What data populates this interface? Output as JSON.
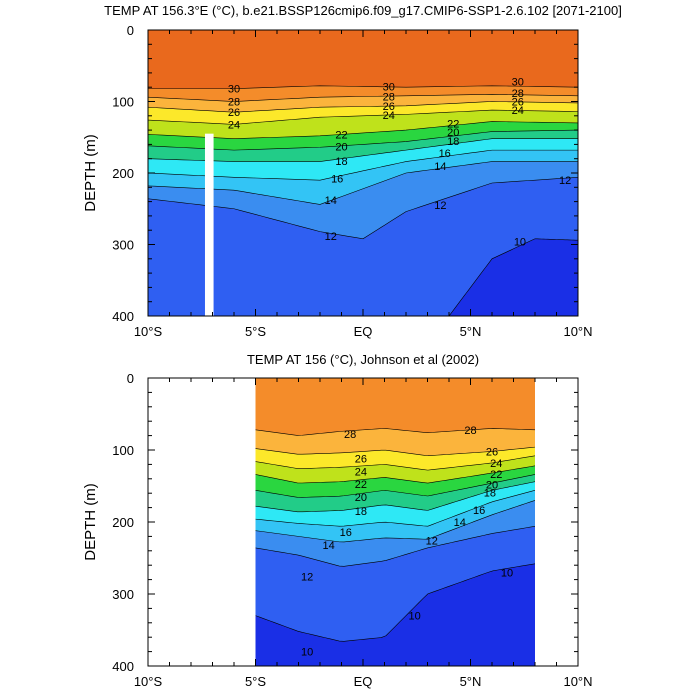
{
  "chart_data": [
    {
      "type": "heatmap",
      "subtype": "filled-contour",
      "title": "TEMP AT 156.3°E (°C), b.e21.BSSP126cmip6.f09_g17.CMIP6-SSP1-2.6.102 [2071-2100]",
      "xlabel": "",
      "ylabel": "DEPTH (m)",
      "xlim": [
        -10,
        10
      ],
      "ylim": [
        400,
        0
      ],
      "x_ticks": [
        -10,
        -5,
        0,
        5,
        10
      ],
      "x_tick_labels": [
        "10°S",
        "5°S",
        "EQ",
        "5°N",
        "10°N"
      ],
      "y_ticks": [
        0,
        100,
        200,
        300,
        400
      ],
      "y_tick_labels": [
        "0",
        "100",
        "200",
        "300",
        "400"
      ],
      "data_xrange": [
        -10,
        10
      ],
      "depth_max": 400,
      "gap": {
        "x_range": [
          -7.35,
          -6.95
        ],
        "depth_top": 145
      },
      "levels": [
        {
          "level": 30,
          "x": [
            -10,
            -6,
            -2,
            2,
            6,
            10
          ],
          "depth": [
            82,
            82,
            78,
            80,
            78,
            80
          ],
          "labels": [
            {
              "x": -6.0,
              "d": 82,
              "text": "30"
            },
            {
              "x": 1.2,
              "d": 79,
              "text": "30"
            },
            {
              "x": 7.2,
              "d": 72,
              "text": "30"
            }
          ]
        },
        {
          "level": 28,
          "x": [
            -10,
            -6,
            -2,
            2,
            6,
            10
          ],
          "depth": [
            94,
            100,
            94,
            92,
            90,
            92
          ],
          "labels": [
            {
              "x": -6.0,
              "d": 100,
              "text": "28"
            },
            {
              "x": 1.2,
              "d": 93,
              "text": "28"
            },
            {
              "x": 7.2,
              "d": 88,
              "text": "28"
            }
          ]
        },
        {
          "level": 26,
          "x": [
            -10,
            -6,
            -2,
            2,
            6,
            10
          ],
          "depth": [
            108,
            115,
            108,
            106,
            100,
            102
          ],
          "labels": [
            {
              "x": -6.0,
              "d": 115,
              "text": "26"
            },
            {
              "x": 1.2,
              "d": 106,
              "text": "26"
            },
            {
              "x": 7.2,
              "d": 100,
              "text": "26"
            }
          ]
        },
        {
          "level": 24,
          "x": [
            -10,
            -6,
            -2,
            2,
            6,
            10
          ],
          "depth": [
            126,
            132,
            122,
            118,
            112,
            114
          ],
          "labels": [
            {
              "x": -6.0,
              "d": 132,
              "text": "24"
            },
            {
              "x": 1.2,
              "d": 119,
              "text": "24"
            },
            {
              "x": 7.2,
              "d": 112,
              "text": "24"
            }
          ]
        },
        {
          "level": 22,
          "x": [
            -10,
            -6,
            -2,
            2,
            6,
            10
          ],
          "depth": [
            146,
            152,
            148,
            140,
            128,
            130
          ],
          "labels": [
            {
              "x": -1.0,
              "d": 146,
              "text": "22"
            },
            {
              "x": 4.2,
              "d": 131,
              "text": "22"
            }
          ]
        },
        {
          "level": 20,
          "x": [
            -10,
            -6,
            -2,
            2,
            6,
            10
          ],
          "depth": [
            162,
            168,
            164,
            156,
            142,
            140
          ],
          "labels": [
            {
              "x": -1.0,
              "d": 163,
              "text": "20"
            },
            {
              "x": 4.2,
              "d": 143,
              "text": "20"
            }
          ]
        },
        {
          "level": 18,
          "x": [
            -10,
            -6,
            -2,
            2,
            6,
            10
          ],
          "depth": [
            180,
            184,
            184,
            168,
            152,
            152
          ],
          "labels": [
            {
              "x": -1.0,
              "d": 183,
              "text": "18"
            },
            {
              "x": 4.2,
              "d": 155,
              "text": "18"
            }
          ]
        },
        {
          "level": 16,
          "x": [
            -10,
            -6,
            -2,
            2,
            6,
            10
          ],
          "depth": [
            200,
            206,
            210,
            184,
            168,
            168
          ],
          "labels": [
            {
              "x": -1.2,
              "d": 208,
              "text": "16"
            },
            {
              "x": 3.8,
              "d": 172,
              "text": "16"
            }
          ]
        },
        {
          "level": 14,
          "x": [
            -10,
            -6,
            -2,
            2,
            6,
            10
          ],
          "depth": [
            218,
            224,
            244,
            200,
            184,
            184
          ],
          "labels": [
            {
              "x": -1.5,
              "d": 238,
              "text": "14"
            },
            {
              "x": 3.6,
              "d": 190,
              "text": "14"
            }
          ]
        },
        {
          "level": 12,
          "x": [
            -10,
            -6,
            -2,
            0,
            2,
            6,
            10
          ],
          "depth": [
            236,
            250,
            282,
            292,
            254,
            214,
            206
          ],
          "labels": [
            {
              "x": -1.5,
              "d": 288,
              "text": "12"
            },
            {
              "x": 3.6,
              "d": 245,
              "text": "12"
            },
            {
              "x": 9.4,
              "d": 210,
              "text": "12"
            }
          ]
        },
        {
          "level": 10,
          "x": [
            4,
            6,
            8,
            10
          ],
          "depth": [
            400,
            320,
            292,
            294
          ],
          "labels": [
            {
              "x": 7.3,
              "d": 296,
              "text": "10"
            }
          ]
        }
      ],
      "colors": [
        "#1a2fe6",
        "#2f5ff2",
        "#3a8df0",
        "#33c4f5",
        "#2ee8f5",
        "#22cc88",
        "#2ad640",
        "#bfe21b",
        "#fce82a",
        "#fbb43c",
        "#f48c2a",
        "#e9691d",
        "#e13516",
        "#dc1616",
        "#bf0505"
      ]
    },
    {
      "type": "heatmap",
      "subtype": "filled-contour",
      "title": "TEMP AT 156 (°C), Johnson et al (2002)",
      "xlabel": "",
      "ylabel": "DEPTH (m)",
      "xlim": [
        -10,
        10
      ],
      "ylim": [
        400,
        0
      ],
      "x_ticks": [
        -10,
        -5,
        0,
        5,
        10
      ],
      "x_tick_labels": [
        "10°S",
        "5°S",
        "EQ",
        "5°N",
        "10°N"
      ],
      "y_ticks": [
        0,
        100,
        200,
        300,
        400
      ],
      "y_tick_labels": [
        "0",
        "100",
        "200",
        "300",
        "400"
      ],
      "data_xrange": [
        -5,
        8
      ],
      "depth_max": 400,
      "levels": [
        {
          "level": 28,
          "x": [
            -5,
            -3,
            -1,
            1,
            3,
            6,
            8
          ],
          "depth": [
            72,
            80,
            74,
            70,
            76,
            70,
            72
          ],
          "labels": [
            {
              "x": -0.6,
              "d": 78,
              "text": "28"
            },
            {
              "x": 5.0,
              "d": 72,
              "text": "28"
            }
          ]
        },
        {
          "level": 26,
          "x": [
            -5,
            -3,
            -1,
            1,
            3,
            6,
            8
          ],
          "depth": [
            98,
            106,
            104,
            100,
            108,
            102,
            96
          ],
          "labels": [
            {
              "x": -0.1,
              "d": 112,
              "text": "26"
            },
            {
              "x": 6.0,
              "d": 102,
              "text": "26"
            }
          ]
        },
        {
          "level": 24,
          "x": [
            -5,
            -3,
            -1,
            1,
            3,
            6,
            8
          ],
          "depth": [
            116,
            126,
            124,
            120,
            128,
            118,
            108
          ],
          "labels": [
            {
              "x": -0.1,
              "d": 130,
              "text": "24"
            },
            {
              "x": 6.2,
              "d": 118,
              "text": "24"
            }
          ]
        },
        {
          "level": 22,
          "x": [
            -5,
            -3,
            -1,
            1,
            3,
            6,
            8
          ],
          "depth": [
            134,
            146,
            144,
            138,
            146,
            132,
            122
          ],
          "labels": [
            {
              "x": -0.1,
              "d": 147,
              "text": "22"
            },
            {
              "x": 6.2,
              "d": 133,
              "text": "22"
            }
          ]
        },
        {
          "level": 20,
          "x": [
            -5,
            -3,
            -1,
            1,
            3,
            6,
            8
          ],
          "depth": [
            156,
            166,
            164,
            156,
            164,
            146,
            134
          ],
          "labels": [
            {
              "x": -0.1,
              "d": 165,
              "text": "20"
            },
            {
              "x": 6.0,
              "d": 148,
              "text": "20"
            }
          ]
        },
        {
          "level": 18,
          "x": [
            -5,
            -3,
            -1,
            1,
            3,
            6,
            8
          ],
          "depth": [
            178,
            186,
            184,
            176,
            184,
            156,
            144
          ],
          "labels": [
            {
              "x": -0.1,
              "d": 185,
              "text": "18"
            },
            {
              "x": 5.9,
              "d": 159,
              "text": "18"
            }
          ]
        },
        {
          "level": 16,
          "x": [
            -5,
            -3,
            -1,
            1,
            3,
            6,
            8
          ],
          "depth": [
            196,
            202,
            206,
            200,
            206,
            172,
            156
          ],
          "labels": [
            {
              "x": -0.8,
              "d": 214,
              "text": "16"
            },
            {
              "x": 5.4,
              "d": 183,
              "text": "16"
            }
          ]
        },
        {
          "level": 14,
          "x": [
            -5,
            -3,
            -1,
            1,
            3,
            6,
            8
          ],
          "depth": [
            212,
            220,
            228,
            222,
            224,
            190,
            170
          ],
          "labels": [
            {
              "x": -1.6,
              "d": 232,
              "text": "14"
            },
            {
              "x": 4.5,
              "d": 200,
              "text": "14"
            }
          ]
        },
        {
          "level": 12,
          "x": [
            -5,
            -3,
            -1,
            1,
            3,
            6,
            8
          ],
          "depth": [
            236,
            246,
            262,
            254,
            236,
            216,
            206
          ],
          "labels": [
            {
              "x": -2.6,
              "d": 276,
              "text": "12"
            },
            {
              "x": 3.2,
              "d": 226,
              "text": "12"
            }
          ]
        },
        {
          "level": 10,
          "x": [
            -5,
            -3,
            -1,
            1,
            3,
            6,
            8
          ],
          "depth": [
            330,
            352,
            366,
            360,
            300,
            268,
            258
          ],
          "labels": [
            {
              "x": -2.6,
              "d": 380,
              "text": "10"
            },
            {
              "x": 2.4,
              "d": 330,
              "text": "10"
            },
            {
              "x": 6.7,
              "d": 270,
              "text": "10"
            }
          ]
        }
      ],
      "colors": [
        "#1a2fe6",
        "#2f5ff2",
        "#3a8df0",
        "#33c4f5",
        "#2ee8f5",
        "#22cc88",
        "#2ad640",
        "#bfe21b",
        "#fce82a",
        "#fbb43c",
        "#f48c2a",
        "#e9691d",
        "#e13516",
        "#dc1616"
      ]
    }
  ]
}
